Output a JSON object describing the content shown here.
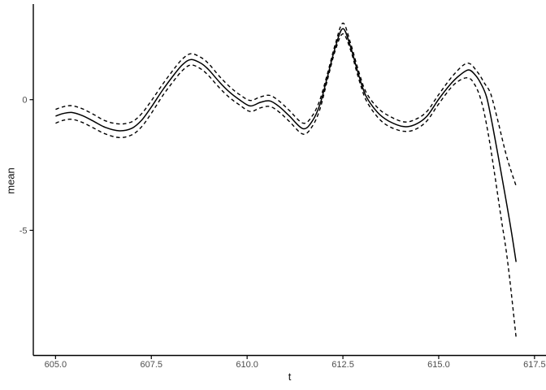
{
  "figure": {
    "background_color": "#FFFFFF"
  },
  "chart_data": {
    "type": "line",
    "title": "",
    "xlabel": "t",
    "ylabel": "mean",
    "grid": false,
    "legend": "none",
    "xlim": [
      604.42,
      617.8
    ],
    "ylim": [
      -9.79,
      3.66
    ],
    "x_ticks": {
      "values": [
        605.0,
        607.5,
        610.0,
        612.5,
        615.0,
        617.5
      ],
      "labels": [
        "605.0",
        "607.5",
        "610.0",
        "612.5",
        "615.0",
        "617.5"
      ]
    },
    "y_ticks": {
      "values": [
        0,
        -5
      ],
      "labels": [
        "0",
        "-5"
      ]
    },
    "styles": {
      "line_color": "#000000",
      "axis_line_color": "#000000",
      "tick_text_color": "#4D4D4D",
      "axis_title_color": "#111111",
      "solid_width": 1.5,
      "dashed_width": 1.4,
      "dash_pattern": "4.5 3.5"
    },
    "series": [
      {
        "name": "mean",
        "line_style": "solid",
        "points": [
          [
            605.0,
            -0.63
          ],
          [
            605.2,
            -0.53
          ],
          [
            605.42,
            -0.49
          ],
          [
            605.7,
            -0.61
          ],
          [
            606.0,
            -0.83
          ],
          [
            606.3,
            -1.06
          ],
          [
            606.67,
            -1.19
          ],
          [
            607.0,
            -1.09
          ],
          [
            607.25,
            -0.78
          ],
          [
            607.5,
            -0.28
          ],
          [
            607.8,
            0.38
          ],
          [
            608.1,
            0.97
          ],
          [
            608.32,
            1.35
          ],
          [
            608.54,
            1.54
          ],
          [
            608.8,
            1.39
          ],
          [
            609.0,
            1.14
          ],
          [
            609.28,
            0.67
          ],
          [
            609.55,
            0.28
          ],
          [
            609.8,
            0.0
          ],
          [
            610.08,
            -0.24
          ],
          [
            610.35,
            -0.1
          ],
          [
            610.6,
            -0.05
          ],
          [
            610.85,
            -0.28
          ],
          [
            611.1,
            -0.62
          ],
          [
            611.46,
            -1.11
          ],
          [
            611.7,
            -0.82
          ],
          [
            611.9,
            -0.18
          ],
          [
            612.1,
            0.9
          ],
          [
            612.3,
            2.0
          ],
          [
            612.5,
            2.72
          ],
          [
            612.7,
            2.02
          ],
          [
            612.9,
            1.0
          ],
          [
            613.1,
            0.15
          ],
          [
            613.4,
            -0.48
          ],
          [
            613.7,
            -0.82
          ],
          [
            614.09,
            -1.03
          ],
          [
            614.4,
            -0.94
          ],
          [
            614.7,
            -0.62
          ],
          [
            615.0,
            0.02
          ],
          [
            615.3,
            0.58
          ],
          [
            615.55,
            0.94
          ],
          [
            615.78,
            1.14
          ],
          [
            615.95,
            0.95
          ],
          [
            616.1,
            0.62
          ],
          [
            616.25,
            0.1
          ],
          [
            616.4,
            -0.95
          ],
          [
            616.55,
            -2.15
          ],
          [
            616.72,
            -3.55
          ],
          [
            616.88,
            -4.9
          ],
          [
            617.02,
            -6.21
          ]
        ]
      },
      {
        "name": "upper_bound",
        "line_style": "dashed",
        "points": [
          [
            605.0,
            -0.37
          ],
          [
            605.2,
            -0.27
          ],
          [
            605.42,
            -0.23
          ],
          [
            605.7,
            -0.35
          ],
          [
            606.0,
            -0.57
          ],
          [
            606.3,
            -0.81
          ],
          [
            606.67,
            -0.93
          ],
          [
            607.0,
            -0.84
          ],
          [
            607.25,
            -0.53
          ],
          [
            607.5,
            -0.04
          ],
          [
            607.8,
            0.6
          ],
          [
            608.1,
            1.19
          ],
          [
            608.32,
            1.57
          ],
          [
            608.54,
            1.76
          ],
          [
            608.8,
            1.61
          ],
          [
            609.0,
            1.37
          ],
          [
            609.28,
            0.89
          ],
          [
            609.55,
            0.49
          ],
          [
            609.8,
            0.2
          ],
          [
            610.08,
            -0.03
          ],
          [
            610.35,
            0.11
          ],
          [
            610.6,
            0.16
          ],
          [
            610.85,
            -0.07
          ],
          [
            611.1,
            -0.41
          ],
          [
            611.46,
            -0.9
          ],
          [
            611.7,
            -0.62
          ],
          [
            611.9,
            0.0
          ],
          [
            612.1,
            1.02
          ],
          [
            612.3,
            2.12
          ],
          [
            612.5,
            2.93
          ],
          [
            612.7,
            2.16
          ],
          [
            612.9,
            1.14
          ],
          [
            613.1,
            0.3
          ],
          [
            613.4,
            -0.3
          ],
          [
            613.7,
            -0.62
          ],
          [
            614.09,
            -0.85
          ],
          [
            614.4,
            -0.75
          ],
          [
            614.7,
            -0.44
          ],
          [
            615.0,
            0.2
          ],
          [
            615.4,
            0.97
          ],
          [
            615.75,
            1.4
          ],
          [
            616.0,
            1.08
          ],
          [
            616.2,
            0.62
          ],
          [
            616.36,
            0.21
          ],
          [
            616.55,
            -0.85
          ],
          [
            616.75,
            -2.05
          ],
          [
            616.9,
            -2.78
          ],
          [
            617.02,
            -3.3
          ]
        ]
      },
      {
        "name": "lower_bound",
        "line_style": "dashed",
        "points": [
          [
            605.0,
            -0.9
          ],
          [
            605.2,
            -0.79
          ],
          [
            605.42,
            -0.75
          ],
          [
            605.7,
            -0.87
          ],
          [
            606.0,
            -1.09
          ],
          [
            606.3,
            -1.31
          ],
          [
            606.67,
            -1.45
          ],
          [
            607.0,
            -1.34
          ],
          [
            607.25,
            -1.03
          ],
          [
            607.5,
            -0.52
          ],
          [
            607.8,
            0.16
          ],
          [
            608.1,
            0.75
          ],
          [
            608.32,
            1.13
          ],
          [
            608.54,
            1.33
          ],
          [
            608.8,
            1.17
          ],
          [
            609.0,
            0.91
          ],
          [
            609.28,
            0.45
          ],
          [
            609.55,
            0.07
          ],
          [
            609.8,
            -0.2
          ],
          [
            610.08,
            -0.45
          ],
          [
            610.35,
            -0.31
          ],
          [
            610.6,
            -0.26
          ],
          [
            610.85,
            -0.49
          ],
          [
            611.1,
            -0.83
          ],
          [
            611.46,
            -1.32
          ],
          [
            611.7,
            -1.02
          ],
          [
            611.9,
            -0.36
          ],
          [
            612.1,
            0.78
          ],
          [
            612.3,
            1.88
          ],
          [
            612.5,
            2.52
          ],
          [
            612.7,
            1.9
          ],
          [
            612.9,
            0.86
          ],
          [
            613.1,
            0.0
          ],
          [
            613.4,
            -0.66
          ],
          [
            613.7,
            -1.02
          ],
          [
            614.09,
            -1.21
          ],
          [
            614.4,
            -1.13
          ],
          [
            614.7,
            -0.8
          ],
          [
            615.0,
            -0.16
          ],
          [
            615.4,
            0.58
          ],
          [
            615.75,
            0.84
          ],
          [
            615.95,
            0.55
          ],
          [
            616.12,
            -0.1
          ],
          [
            616.28,
            -1.2
          ],
          [
            616.45,
            -2.75
          ],
          [
            616.62,
            -4.45
          ],
          [
            616.8,
            -6.2
          ],
          [
            617.02,
            -9.1
          ]
        ]
      }
    ]
  }
}
